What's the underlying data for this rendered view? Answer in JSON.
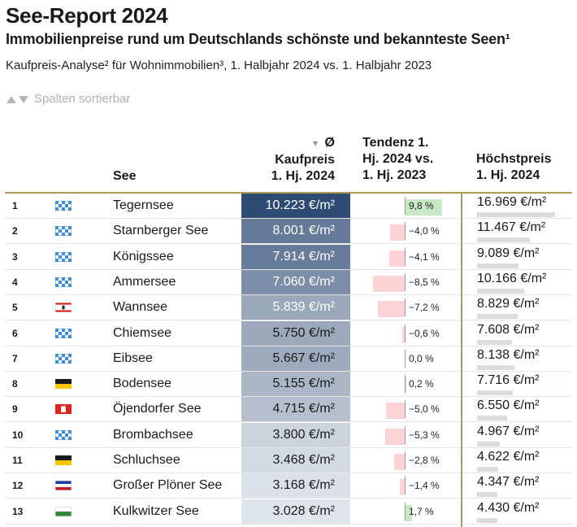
{
  "header": {
    "title": "See-Report 2024",
    "subtitle": "Immobilienpreise rund um Deutschlands schönste und bekannteste Seen¹",
    "description": "Kaufpreis-Analyse² für Wohnimmobilien³, 1. Halbjahr 2024 vs. 1. Halbjahr 2023",
    "sort_hint": "Spalten sortierbar"
  },
  "columns": {
    "see": "See",
    "price": [
      "Ø",
      "Kaufpreis",
      "1. Hj. 2024"
    ],
    "trend": [
      "Tendenz 1.",
      "Hj. 2024 vs.",
      "1. Hj. 2023"
    ],
    "max": [
      "Höchstpreis",
      "1. Hj. 2024"
    ]
  },
  "colors": {
    "accent_line": "#b09a58",
    "price_dark": "#2e4b74",
    "price_light": "#dfe3ea",
    "trend_negative": "#fdd3d5",
    "trend_positive": "#c9e9c6",
    "max_bar": "#dcdcdc"
  },
  "chart_data": {
    "type": "table",
    "rows": [
      {
        "rank": "1",
        "flag": "bayern-flag-icon",
        "name": "Tegernsee",
        "price": 10223,
        "price_label": "10.223 €/m²",
        "trend": 9.8,
        "trend_label": "9,8 %",
        "max": 16969,
        "max_label": "16.969 €/m²"
      },
      {
        "rank": "2",
        "flag": "bayern-flag-icon",
        "name": "Starnberger See",
        "price": 8001,
        "price_label": "8.001 €/m²",
        "trend": -4.0,
        "trend_label": "−4,0 %",
        "max": 11467,
        "max_label": "11.467 €/m²"
      },
      {
        "rank": "3",
        "flag": "bayern-flag-icon",
        "name": "Königssee",
        "price": 7914,
        "price_label": "7.914 €/m²",
        "trend": -4.1,
        "trend_label": "−4,1 %",
        "max": 9089,
        "max_label": "9.089 €/m²"
      },
      {
        "rank": "4",
        "flag": "bayern-flag-icon",
        "name": "Ammersee",
        "price": 7060,
        "price_label": "7.060 €/m²",
        "trend": -8.5,
        "trend_label": "−8,5 %",
        "max": 10166,
        "max_label": "10.166 €/m²"
      },
      {
        "rank": "5",
        "flag": "berlin-flag-icon",
        "name": "Wannsee",
        "price": 5839,
        "price_label": "5.839 €/m²",
        "trend": -7.2,
        "trend_label": "−7,2 %",
        "max": 8829,
        "max_label": "8.829 €/m²"
      },
      {
        "rank": "6",
        "flag": "bayern-flag-icon",
        "name": "Chiemsee",
        "price": 5750,
        "price_label": "5.750 €/m²",
        "trend": -0.6,
        "trend_label": "−0,6 %",
        "max": 7608,
        "max_label": "7.608 €/m²"
      },
      {
        "rank": "7",
        "flag": "bayern-flag-icon",
        "name": "Eibsee",
        "price": 5667,
        "price_label": "5.667 €/m²",
        "trend": 0.0,
        "trend_label": "0,0 %",
        "max": 8138,
        "max_label": "8.138 €/m²"
      },
      {
        "rank": "8",
        "flag": "baden-wuerttemberg-flag-icon",
        "name": "Bodensee",
        "price": 5155,
        "price_label": "5.155 €/m²",
        "trend": 0.2,
        "trend_label": "0,2 %",
        "max": 7716,
        "max_label": "7.716 €/m²"
      },
      {
        "rank": "9",
        "flag": "hamburg-flag-icon",
        "name": "Öjendorfer See",
        "price": 4715,
        "price_label": "4.715 €/m²",
        "trend": -5.0,
        "trend_label": "−5,0 %",
        "max": 6550,
        "max_label": "6.550 €/m²"
      },
      {
        "rank": "10",
        "flag": "bayern-flag-icon",
        "name": "Brombachsee",
        "price": 3800,
        "price_label": "3.800 €/m²",
        "trend": -5.3,
        "trend_label": "−5,3 %",
        "max": 4967,
        "max_label": "4.967 €/m²"
      },
      {
        "rank": "11",
        "flag": "baden-wuerttemberg-flag-icon",
        "name": "Schluchsee",
        "price": 3468,
        "price_label": "3.468 €/m²",
        "trend": -2.8,
        "trend_label": "−2,8 %",
        "max": 4622,
        "max_label": "4.622 €/m²"
      },
      {
        "rank": "12",
        "flag": "schleswig-holstein-flag-icon",
        "name": "Großer Plöner See",
        "price": 3168,
        "price_label": "3.168 €/m²",
        "trend": -1.4,
        "trend_label": "−1,4 %",
        "max": 4347,
        "max_label": "4.347 €/m²"
      },
      {
        "rank": "13",
        "flag": "sachsen-flag-icon",
        "name": "Kulkwitzer See",
        "price": 3028,
        "price_label": "3.028 €/m²",
        "trend": 1.7,
        "trend_label": "1,7 %",
        "max": 4430,
        "max_label": "4.430 €/m²"
      }
    ]
  }
}
